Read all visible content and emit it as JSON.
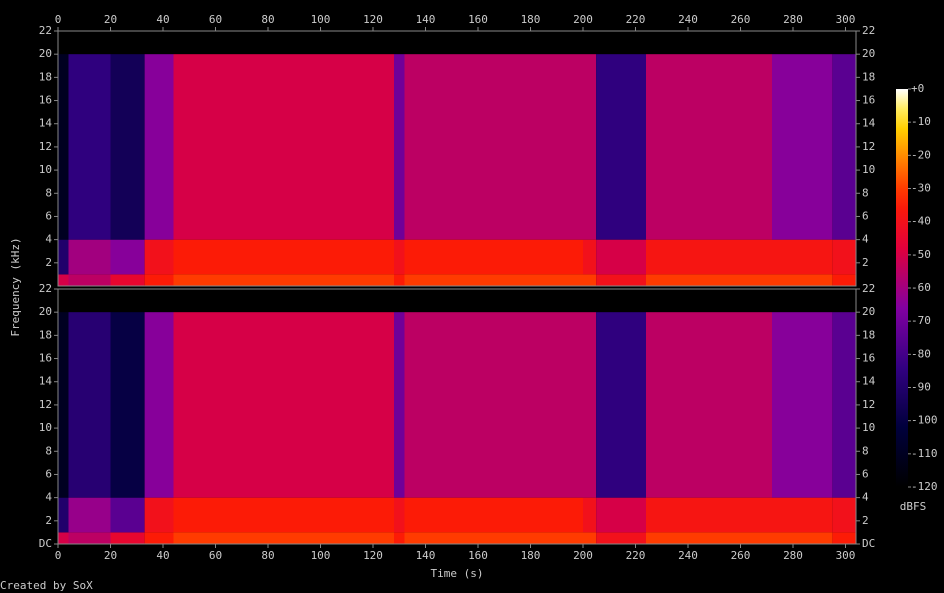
{
  "chart_data": {
    "type": "spectrogram",
    "x_label": "Time (s)",
    "y_label": "Frequency (kHz)",
    "xlim": [
      0,
      304
    ],
    "xticks": [
      0,
      20,
      40,
      60,
      80,
      100,
      120,
      140,
      160,
      180,
      200,
      220,
      240,
      260,
      280,
      300
    ],
    "channels": [
      {
        "ylim": [
          0,
          22
        ],
        "yticks": [
          2,
          4,
          6,
          8,
          10,
          12,
          14,
          16,
          18,
          20,
          22
        ],
        "times": [
          0,
          4,
          20,
          33,
          44,
          128,
          132,
          200,
          205,
          224,
          272,
          295,
          304
        ],
        "bands": [
          0,
          1,
          4,
          20
        ],
        "levels": [
          [
            -50,
            -55,
            -45,
            -35,
            -30,
            -35,
            -30,
            -30,
            -40,
            -30,
            -30,
            -35
          ],
          [
            -90,
            -60,
            -65,
            -40,
            -35,
            -40,
            -35,
            -40,
            -50,
            -38,
            -38,
            -40
          ],
          [
            -110,
            -85,
            -95,
            -65,
            -50,
            -70,
            -55,
            -55,
            -85,
            -55,
            -65,
            -75
          ]
        ]
      },
      {
        "ylim": [
          0,
          22
        ],
        "yticks": [
          {
            "value": 0,
            "label": "DC"
          },
          2,
          4,
          6,
          8,
          10,
          12,
          14,
          16,
          18,
          20,
          22
        ],
        "times": [
          0,
          4,
          20,
          33,
          44,
          128,
          132,
          200,
          205,
          224,
          272,
          295,
          304
        ],
        "bands": [
          0,
          1,
          4,
          20
        ],
        "levels": [
          [
            -50,
            -55,
            -45,
            -35,
            -30,
            -35,
            -30,
            -30,
            -40,
            -30,
            -30,
            -35
          ],
          [
            -90,
            -62,
            -75,
            -40,
            -35,
            -40,
            -35,
            -40,
            -50,
            -38,
            -38,
            -40
          ],
          [
            -110,
            -88,
            -100,
            -65,
            -50,
            -70,
            -55,
            -55,
            -85,
            -55,
            -65,
            -75
          ]
        ]
      }
    ],
    "colorbar": {
      "label": "dBFS",
      "lim": [
        -120,
        0
      ],
      "ticks": [
        {
          "value": 0,
          "label": "+0"
        },
        -10,
        -20,
        -30,
        -40,
        -50,
        -60,
        -70,
        -80,
        -90,
        -100,
        -110,
        -120
      ]
    }
  },
  "credit": "Created by SoX"
}
